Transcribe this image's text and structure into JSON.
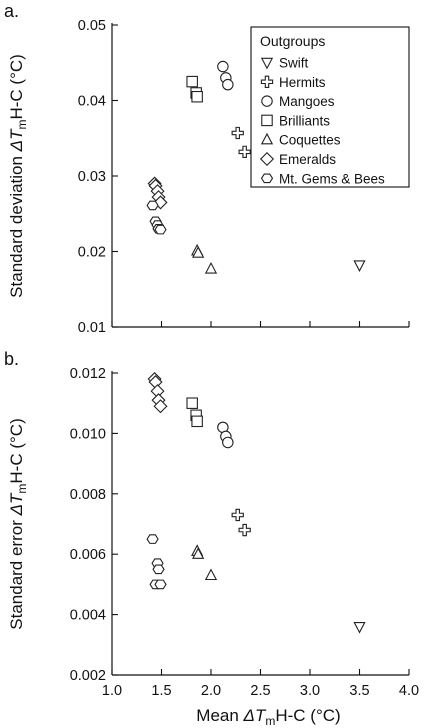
{
  "chart_data": [
    {
      "type": "scatter",
      "panel_label": "a.",
      "ylabel_prefix": "Standard deviation ",
      "ylabel_sym": "ΔT",
      "ylabel_sub": "m",
      "ylabel_suffix": "H-C (°C)",
      "xlim": [
        1.0,
        4.0
      ],
      "ylim": [
        0.01,
        0.05
      ],
      "x_ticks": [
        1.0,
        1.5,
        2.0,
        2.5,
        3.0,
        3.5,
        4.0
      ],
      "y_ticks": [
        0.01,
        0.02,
        0.03,
        0.04,
        0.05
      ],
      "y_tick_labels": [
        "0.01",
        "0.02",
        "0.03",
        "0.04",
        "0.05"
      ],
      "legend_title": "Outgroups",
      "legend_placement": "top-right",
      "series": [
        {
          "name": "Swift",
          "marker": "triangle-down",
          "points": [
            [
              3.5,
              0.0182
            ]
          ]
        },
        {
          "name": "Hermits",
          "marker": "cross-circle",
          "points": [
            [
              2.27,
              0.0357
            ],
            [
              2.34,
              0.0332
            ]
          ]
        },
        {
          "name": "Mangoes",
          "marker": "circle",
          "points": [
            [
              2.12,
              0.0445
            ],
            [
              2.15,
              0.043
            ],
            [
              2.17,
              0.0421
            ]
          ]
        },
        {
          "name": "Brilliants",
          "marker": "square",
          "points": [
            [
              1.81,
              0.0425
            ],
            [
              1.85,
              0.041
            ],
            [
              1.86,
              0.0405
            ]
          ]
        },
        {
          "name": "Coquettes",
          "marker": "triangle-up",
          "points": [
            [
              1.86,
              0.0201
            ],
            [
              1.87,
              0.0198
            ],
            [
              2.0,
              0.0177
            ]
          ]
        },
        {
          "name": "Emeralds",
          "marker": "diamond",
          "points": [
            [
              1.43,
              0.029
            ],
            [
              1.44,
              0.0287
            ],
            [
              1.46,
              0.028
            ],
            [
              1.47,
              0.0272
            ],
            [
              1.49,
              0.0265
            ]
          ]
        },
        {
          "name": "Mt. Gems & Bees",
          "marker": "hexagon",
          "points": [
            [
              1.41,
              0.0261
            ],
            [
              1.44,
              0.024
            ],
            [
              1.46,
              0.0235
            ],
            [
              1.47,
              0.023
            ],
            [
              1.49,
              0.0229
            ]
          ]
        }
      ]
    },
    {
      "type": "scatter",
      "panel_label": "b.",
      "ylabel_prefix": "Standard error ",
      "ylabel_sym": "ΔT",
      "ylabel_sub": "m",
      "ylabel_suffix": "H-C (°C)",
      "xlabel_prefix": "Mean  ",
      "xlabel_sym": "ΔT",
      "xlabel_sub": "m",
      "xlabel_suffix": "H-C (°C)",
      "xlim": [
        1.0,
        4.0
      ],
      "ylim": [
        0.002,
        0.012
      ],
      "x_ticks": [
        1.0,
        1.5,
        2.0,
        2.5,
        3.0,
        3.5,
        4.0
      ],
      "x_tick_labels": [
        "1.0",
        "1.5",
        "2.0",
        "2.5",
        "3.0",
        "3.5",
        "4.0"
      ],
      "y_ticks": [
        0.002,
        0.004,
        0.006,
        0.008,
        0.01,
        0.012
      ],
      "y_tick_labels": [
        "0.002",
        "0.004",
        "0.006",
        "0.008",
        "0.010",
        "0.012"
      ],
      "series": [
        {
          "name": "Swift",
          "marker": "triangle-down",
          "points": [
            [
              3.5,
              0.0036
            ]
          ]
        },
        {
          "name": "Hermits",
          "marker": "cross-circle",
          "points": [
            [
              2.27,
              0.0073
            ],
            [
              2.34,
              0.0068
            ]
          ]
        },
        {
          "name": "Mangoes",
          "marker": "circle",
          "points": [
            [
              2.12,
              0.0102
            ],
            [
              2.15,
              0.0099
            ],
            [
              2.17,
              0.0097
            ]
          ]
        },
        {
          "name": "Brilliants",
          "marker": "square",
          "points": [
            [
              1.81,
              0.011
            ],
            [
              1.85,
              0.0106
            ],
            [
              1.86,
              0.0104
            ]
          ]
        },
        {
          "name": "Coquettes",
          "marker": "triangle-up",
          "points": [
            [
              1.86,
              0.0061
            ],
            [
              1.87,
              0.006
            ],
            [
              2.0,
              0.0053
            ]
          ]
        },
        {
          "name": "Emeralds",
          "marker": "diamond",
          "points": [
            [
              1.43,
              0.0118
            ],
            [
              1.44,
              0.0117
            ],
            [
              1.46,
              0.0114
            ],
            [
              1.47,
              0.0111
            ],
            [
              1.49,
              0.0109
            ]
          ]
        },
        {
          "name": "Mt. Gems & Bees",
          "marker": "hexagon",
          "points": [
            [
              1.41,
              0.0065
            ],
            [
              1.46,
              0.0057
            ],
            [
              1.47,
              0.0055
            ],
            [
              1.44,
              0.005
            ],
            [
              1.49,
              0.005
            ]
          ]
        }
      ]
    }
  ]
}
